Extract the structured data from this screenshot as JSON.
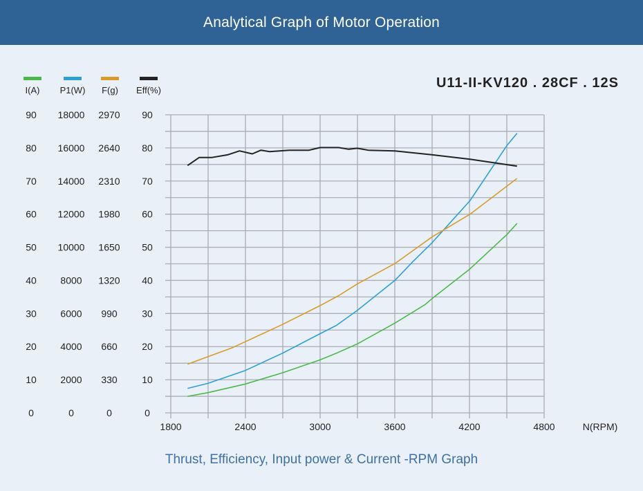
{
  "header": {
    "title": "Analytical Graph of Motor Operation"
  },
  "model": "U11-II-KV120 . 28CF . 12S",
  "footer": {
    "caption": "Thrust, Efficiency, Input power & Current -RPM Graph"
  },
  "chart_data": {
    "type": "line",
    "title": "",
    "xlabel": "N(RPM)",
    "xlim": [
      1800,
      4800
    ],
    "xticks": [
      "1800",
      "2400",
      "3000",
      "3600",
      "4200",
      "4800"
    ],
    "grid": true,
    "legend_position": "top-left",
    "axes": [
      {
        "label": "I(A)",
        "ticks": [
          "0",
          "10",
          "20",
          "30",
          "40",
          "50",
          "60",
          "70",
          "80",
          "90"
        ],
        "range": [
          0,
          90
        ]
      },
      {
        "label": "P1(W)",
        "ticks": [
          "0",
          "2000",
          "4000",
          "6000",
          "8000",
          "10000",
          "12000",
          "14000",
          "16000",
          "18000"
        ],
        "range": [
          0,
          18000
        ]
      },
      {
        "label": "F(g)",
        "ticks": [
          "0",
          "330",
          "660",
          "990",
          "1320",
          "1650",
          "1980",
          "2310",
          "2640",
          "2970"
        ],
        "range": [
          0,
          2970
        ]
      },
      {
        "label": "Eff(%)",
        "ticks": [
          "0",
          "10",
          "20",
          "30",
          "40",
          "50",
          "60",
          "70",
          "80",
          "90"
        ],
        "range": [
          0,
          90
        ]
      }
    ],
    "series": [
      {
        "name": "I(A)",
        "color": "#4cb84c",
        "axis": 0,
        "x": [
          1935,
          2098,
          2399,
          2697,
          3000,
          3130,
          3298,
          3601,
          3844,
          3903,
          4205,
          4502,
          4582
        ],
        "y": [
          5.0,
          6.1,
          8.7,
          12.1,
          16.0,
          18.0,
          20.8,
          27.1,
          32.7,
          34.6,
          43.5,
          53.9,
          57.2
        ]
      },
      {
        "name": "P1(W)",
        "color": "#2d9fd4",
        "axis": 1,
        "x": [
          1935,
          2098,
          2399,
          2697,
          3000,
          3130,
          3298,
          3601,
          3744,
          3903,
          4205,
          4502,
          4582
        ],
        "y": [
          1480,
          1780,
          2560,
          3600,
          4780,
          5280,
          6180,
          8000,
          9120,
          10300,
          12820,
          16160,
          16880
        ]
      },
      {
        "name": "F(g)",
        "color": "#d99a2b",
        "axis": 2,
        "x": [
          1935,
          2296,
          2697,
          3000,
          3149,
          3298,
          3601,
          3903,
          4205,
          4582
        ],
        "y": [
          485,
          650,
          881,
          1069,
          1168,
          1284,
          1488,
          1756,
          1980,
          2336
        ]
      },
      {
        "name": "Eff(%)",
        "color": "#222222",
        "axis": 3,
        "x": [
          1935,
          2028,
          2127,
          2256,
          2352,
          2455,
          2524,
          2594,
          2752,
          2911,
          3000,
          3149,
          3229,
          3298,
          3387,
          3601,
          3903,
          4205,
          4582
        ],
        "y": [
          74.7,
          77.1,
          77.1,
          77.9,
          79.1,
          78.2,
          79.3,
          78.9,
          79.3,
          79.3,
          80.1,
          80.1,
          79.6,
          79.9,
          79.3,
          79.1,
          77.9,
          76.6,
          74.5
        ]
      }
    ]
  }
}
